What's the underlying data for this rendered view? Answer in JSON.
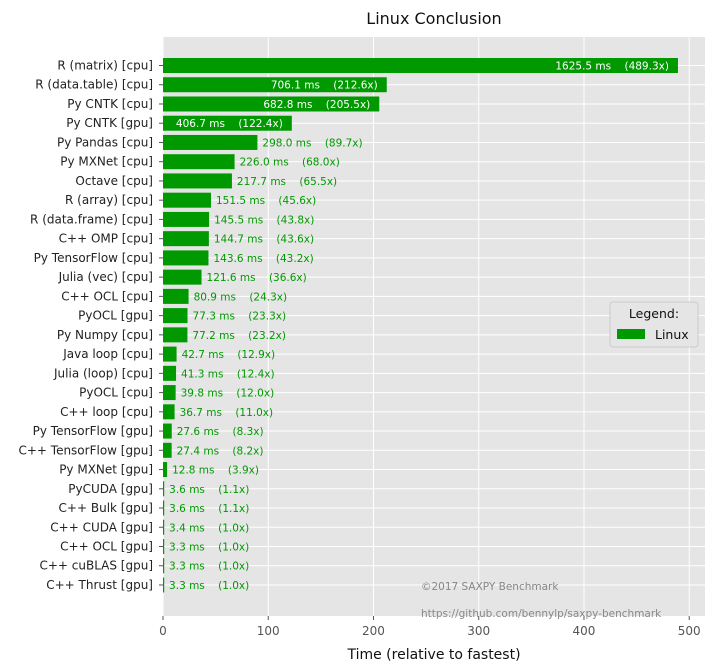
{
  "chart_data": {
    "type": "bar",
    "orientation": "horizontal",
    "title": "Linux Conclusion",
    "xlabel": "Time (relative to fastest)",
    "ylabel": "",
    "xlim": [
      0,
      515
    ],
    "xticks": [
      0,
      100,
      200,
      300,
      400,
      500
    ],
    "grid": true,
    "bar_color": "#009900",
    "label_color_inside": "#ffffff",
    "label_color_outside": "#009900",
    "legend": {
      "title": "Legend:",
      "entries": [
        "Linux"
      ],
      "placement": "center-right"
    },
    "annotations": [
      "©2017 SAXPY Benchmark",
      "https://github.com/bennylp/saxpy-benchmark"
    ],
    "series": [
      {
        "name": "Linux",
        "categories": [
          "R (matrix) [cpu]",
          "R (data.table) [cpu]",
          "Py CNTK [cpu]",
          "Py CNTK [gpu]",
          "Py Pandas [cpu]",
          "Py MXNet [cpu]",
          "Octave [cpu]",
          "R (array) [cpu]",
          "R (data.frame) [cpu]",
          "C++ OMP [cpu]",
          "Py TensorFlow [cpu]",
          "Julia (vec) [cpu]",
          "C++ OCL [cpu]",
          "PyOCL [gpu]",
          "Py Numpy [cpu]",
          "Java loop [cpu]",
          "Julia (loop) [cpu]",
          "PyOCL [cpu]",
          "C++ loop [cpu]",
          "Py TensorFlow [gpu]",
          "C++ TensorFlow [gpu]",
          "Py MXNet [gpu]",
          "PyCUDA [gpu]",
          "C++ Bulk [gpu]",
          "C++ CUDA [gpu]",
          "C++ OCL [gpu]",
          "C++ cuBLAS [gpu]",
          "C++ Thrust [gpu]"
        ],
        "values": [
          489.3,
          212.6,
          205.5,
          122.4,
          89.7,
          68.0,
          65.5,
          45.6,
          43.8,
          43.6,
          43.2,
          36.6,
          24.3,
          23.3,
          23.2,
          12.9,
          12.4,
          12.0,
          11.0,
          8.3,
          8.2,
          3.9,
          1.1,
          1.1,
          1.0,
          1.0,
          1.0,
          1.0
        ],
        "labels": [
          "1625.5 ms    (489.3x)",
          "706.1 ms    (212.6x)",
          "682.8 ms    (205.5x)",
          "406.7 ms    (122.4x)",
          "298.0 ms    (89.7x)",
          "226.0 ms    (68.0x)",
          "217.7 ms    (65.5x)",
          "151.5 ms    (45.6x)",
          "145.5 ms    (43.8x)",
          "144.7 ms    (43.6x)",
          "143.6 ms    (43.2x)",
          "121.6 ms    (36.6x)",
          "80.9 ms    (24.3x)",
          "77.3 ms    (23.3x)",
          "77.2 ms    (23.2x)",
          "42.7 ms    (12.9x)",
          "41.3 ms    (12.4x)",
          "39.8 ms    (12.0x)",
          "36.7 ms    (11.0x)",
          "27.6 ms    (8.3x)",
          "27.4 ms    (8.2x)",
          "12.8 ms    (3.9x)",
          "3.6 ms    (1.1x)",
          "3.6 ms    (1.1x)",
          "3.4 ms    (1.0x)",
          "3.3 ms    (1.0x)",
          "3.3 ms    (1.0x)",
          "3.3 ms    (1.0x)"
        ],
        "label_inside": [
          true,
          true,
          true,
          true,
          false,
          false,
          false,
          false,
          false,
          false,
          false,
          false,
          false,
          false,
          false,
          false,
          false,
          false,
          false,
          false,
          false,
          false,
          false,
          false,
          false,
          false,
          false,
          false
        ]
      }
    ]
  }
}
